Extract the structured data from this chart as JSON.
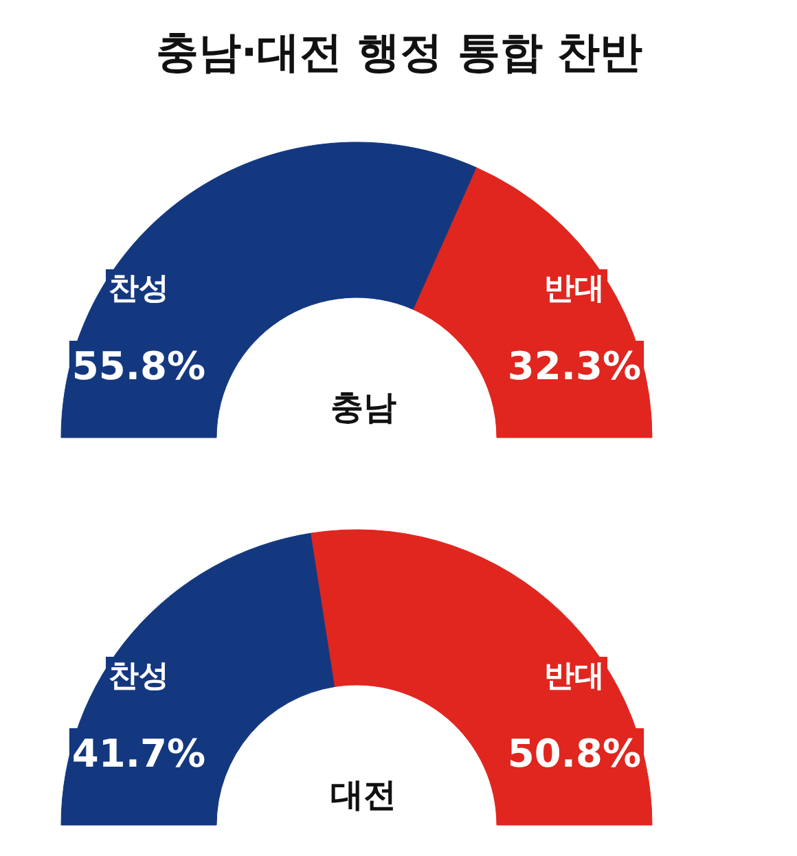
{
  "chart_data": [
    {
      "type": "donut",
      "title": "충남·대전 행정 통합 찬반",
      "subtitle": "충남",
      "categories": [
        "찬성",
        "반대"
      ],
      "values": [
        55.8,
        32.3
      ],
      "colors": [
        "#14387f",
        "#e0261f"
      ],
      "value_labels": [
        "55.8%",
        "32.3%"
      ]
    },
    {
      "type": "donut",
      "subtitle": "대전",
      "categories": [
        "찬성",
        "반대"
      ],
      "values": [
        41.7,
        50.8
      ],
      "colors": [
        "#14387f",
        "#e0261f"
      ],
      "value_labels": [
        "41.7%",
        "50.8%"
      ]
    }
  ]
}
